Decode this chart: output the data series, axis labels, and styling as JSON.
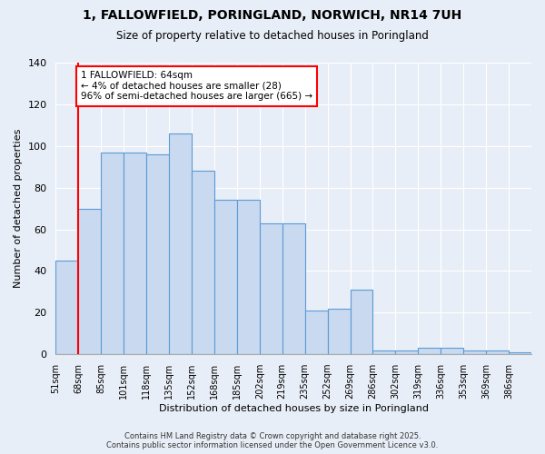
{
  "title_line1": "1, FALLOWFIELD, PORINGLAND, NORWICH, NR14 7UH",
  "title_line2": "Size of property relative to detached houses in Poringland",
  "xlabel": "Distribution of detached houses by size in Poringland",
  "ylabel": "Number of detached properties",
  "bar_labels": [
    "51sqm",
    "68sqm",
    "85sqm",
    "101sqm",
    "118sqm",
    "135sqm",
    "152sqm",
    "168sqm",
    "185sqm",
    "202sqm",
    "219sqm",
    "235sqm",
    "252sqm",
    "269sqm",
    "286sqm",
    "302sqm",
    "319sqm",
    "336sqm",
    "353sqm",
    "369sqm",
    "386sqm"
  ],
  "bar_heights": [
    45,
    70,
    97,
    97,
    96,
    106,
    88,
    74,
    74,
    63,
    63,
    21,
    22,
    31,
    2,
    2,
    3,
    3,
    2,
    2,
    1
  ],
  "bar_color": "#c8d9f0",
  "bar_edge_color": "#5b9bd5",
  "annotation_text": "1 FALLOWFIELD: 64sqm\n← 4% of detached houses are smaller (28)\n96% of semi-detached houses are larger (665) →",
  "annotation_box_color": "white",
  "annotation_box_edge": "red",
  "ylim": [
    0,
    140
  ],
  "yticks": [
    0,
    20,
    40,
    60,
    80,
    100,
    120,
    140
  ],
  "property_line_x": 0.5,
  "bg_color": "#e8eef7",
  "grid_color": "white",
  "footer_line1": "Contains HM Land Registry data © Crown copyright and database right 2025.",
  "footer_line2": "Contains public sector information licensed under the Open Government Licence v3.0."
}
